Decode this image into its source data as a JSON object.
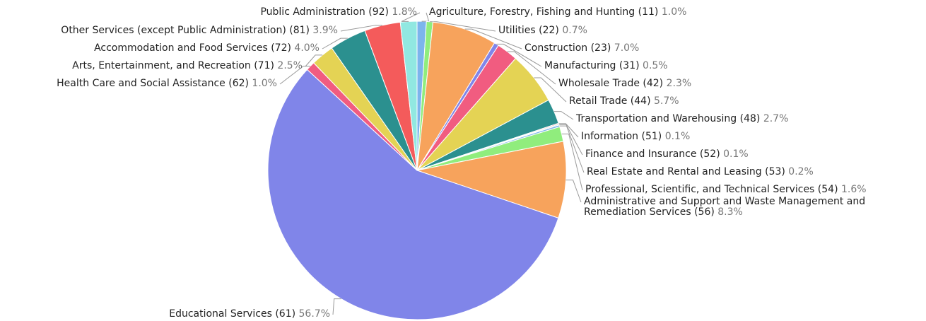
{
  "chart_data": {
    "type": "pie",
    "categories": [
      "Agriculture, Forestry, Fishing and Hunting (11)",
      "Utilities (22)",
      "Construction (23)",
      "Manufacturing (31)",
      "Wholesale Trade (42)",
      "Retail Trade (44)",
      "Transportation and Warehousing (48)",
      "Information (51)",
      "Finance and Insurance (52)",
      "Real Estate and Rental and Leasing (53)",
      "Professional, Scientific, and Technical Services (54)",
      "Administrative and Support and Waste Management and Remediation Services (56)",
      "Educational Services (61)",
      "Health Care and Social Assistance (62)",
      "Arts, Entertainment, and Recreation (71)",
      "Accommodation and Food Services (72)",
      "Other Services (except Public Administration) (81)",
      "Public Administration (92)"
    ],
    "values": [
      1.0,
      0.7,
      7.0,
      0.5,
      2.3,
      5.7,
      2.7,
      0.1,
      0.1,
      0.2,
      1.6,
      8.3,
      56.7,
      1.0,
      2.5,
      4.0,
      3.9,
      1.8
    ],
    "value_labels": [
      "1.0%",
      "0.7%",
      "7.0%",
      "0.5%",
      "2.3%",
      "5.7%",
      "2.7%",
      "0.1%",
      "0.1%",
      "0.2%",
      "1.6%",
      "8.3%",
      "56.7%",
      "1.0%",
      "2.5%",
      "4.0%",
      "3.9%",
      "1.8%"
    ],
    "colors": [
      "#7cb5ec",
      "#90ed7d",
      "#f7a35c",
      "#8085e9",
      "#f15c80",
      "#e4d354",
      "#2b908f",
      "#f45b5b",
      "#91e8e1",
      "#7cb5ec",
      "#90ed7d",
      "#f7a35c",
      "#8085e9",
      "#f15c80",
      "#e4d354",
      "#2b908f",
      "#f45b5b",
      "#91e8e1"
    ]
  }
}
